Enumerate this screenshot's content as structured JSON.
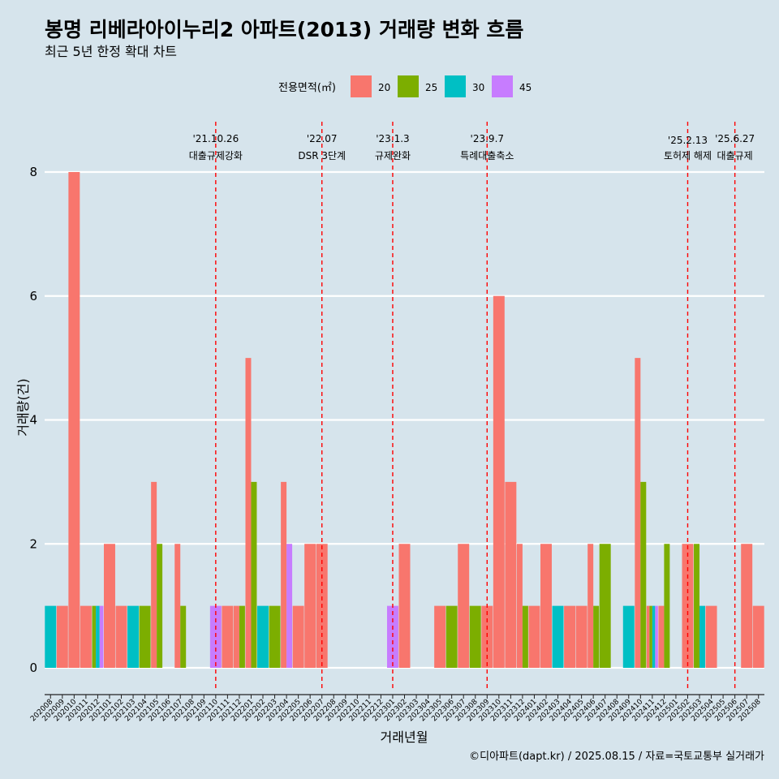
{
  "header": {
    "title": "봉명 리베라아이누리2 아파트(2013) 거래량 변화 흐름",
    "subtitle": "최근 5년 한정 확대 차트"
  },
  "caption": "©디아파트(dapt.kr) / 2025.08.15 / 자료=국토교통부 실거래가",
  "legend": {
    "title": "전용면적(㎡)",
    "items": [
      {
        "label": "20",
        "color": "#F8766D"
      },
      {
        "label": "25",
        "color": "#7CAE00"
      },
      {
        "label": "30",
        "color": "#00BFC4"
      },
      {
        "label": "45",
        "color": "#C77CFF"
      }
    ]
  },
  "chart_data": {
    "type": "bar",
    "xlabel": "거래년월",
    "ylabel": "거래량(건)",
    "ylim": [
      0,
      8
    ],
    "yticks": [
      0,
      2,
      4,
      6,
      8
    ],
    "categories": [
      "202008",
      "202009",
      "202010",
      "202011",
      "202012",
      "202101",
      "202102",
      "202103",
      "202104",
      "202105",
      "202106",
      "202107",
      "202108",
      "202109",
      "202110",
      "202111",
      "202112",
      "202201",
      "202202",
      "202203",
      "202204",
      "202205",
      "202206",
      "202207",
      "202208",
      "202209",
      "202210",
      "202211",
      "202212",
      "202301",
      "202302",
      "202303",
      "202304",
      "202305",
      "202306",
      "202307",
      "202308",
      "202309",
      "202310",
      "202311",
      "202312",
      "202401",
      "202402",
      "202403",
      "202404",
      "202405",
      "202406",
      "202407",
      "202408",
      "202409",
      "202410",
      "202411",
      "202412",
      "202501",
      "202502",
      "202503",
      "202504",
      "202505",
      "202506",
      "202507",
      "202508"
    ],
    "series": [
      {
        "name": "20",
        "values": [
          0,
          1,
          8,
          1,
          0,
          2,
          1,
          0,
          0,
          3,
          0,
          2,
          0,
          0,
          0,
          1,
          1,
          5,
          0,
          0,
          3,
          1,
          2,
          2,
          0,
          0,
          0,
          0,
          0,
          0,
          2,
          0,
          0,
          1,
          0,
          2,
          0,
          1,
          6,
          3,
          2,
          1,
          2,
          0,
          1,
          1,
          2,
          0,
          0,
          0,
          5,
          1,
          1,
          0,
          2,
          0,
          1,
          0,
          0,
          2,
          1
        ]
      },
      {
        "name": "25",
        "values": [
          0,
          0,
          0,
          0,
          1,
          0,
          0,
          0,
          1,
          2,
          0,
          1,
          0,
          0,
          0,
          0,
          1,
          3,
          0,
          1,
          0,
          0,
          0,
          0,
          0,
          0,
          0,
          0,
          0,
          0,
          0,
          0,
          0,
          0,
          1,
          0,
          1,
          0,
          0,
          0,
          1,
          0,
          0,
          0,
          0,
          0,
          1,
          2,
          0,
          0,
          3,
          1,
          2,
          0,
          0,
          2,
          0,
          0,
          0,
          0,
          0
        ]
      },
      {
        "name": "30",
        "values": [
          1,
          0,
          0,
          0,
          1,
          0,
          0,
          1,
          0,
          0,
          0,
          0,
          0,
          0,
          0,
          0,
          0,
          0,
          1,
          0,
          0,
          0,
          0,
          0,
          0,
          0,
          0,
          0,
          0,
          0,
          0,
          0,
          0,
          0,
          0,
          0,
          0,
          0,
          0,
          0,
          0,
          0,
          0,
          1,
          0,
          0,
          0,
          0,
          0,
          1,
          0,
          1,
          0,
          0,
          0,
          1,
          0,
          0,
          0,
          0,
          0
        ]
      },
      {
        "name": "45",
        "values": [
          0,
          0,
          0,
          0,
          1,
          0,
          0,
          0,
          0,
          0,
          0,
          0,
          0,
          0,
          1,
          0,
          0,
          0,
          0,
          0,
          2,
          0,
          0,
          0,
          0,
          0,
          0,
          0,
          0,
          1,
          0,
          0,
          0,
          0,
          0,
          0,
          0,
          0,
          0,
          0,
          0,
          0,
          0,
          0,
          0,
          0,
          0,
          0,
          0,
          0,
          0,
          1,
          0,
          0,
          0,
          0,
          0,
          0,
          0,
          0,
          0
        ]
      }
    ],
    "events": [
      {
        "date": "'21.10.26",
        "label": "대출규제강화",
        "x": "202110"
      },
      {
        "date": "'22.07",
        "label": "DSR 3단계",
        "x": "202207"
      },
      {
        "date": "'23.1.3",
        "label": "규제완화",
        "x": "202301"
      },
      {
        "date": "'23.9.7",
        "label": "특례대출축소",
        "x": "202309"
      },
      {
        "date": "'25.2.13",
        "label": "토허제 해제",
        "x": "202502"
      },
      {
        "date": "'25.6.27",
        "label": "대출규제",
        "x": "202506"
      }
    ]
  }
}
